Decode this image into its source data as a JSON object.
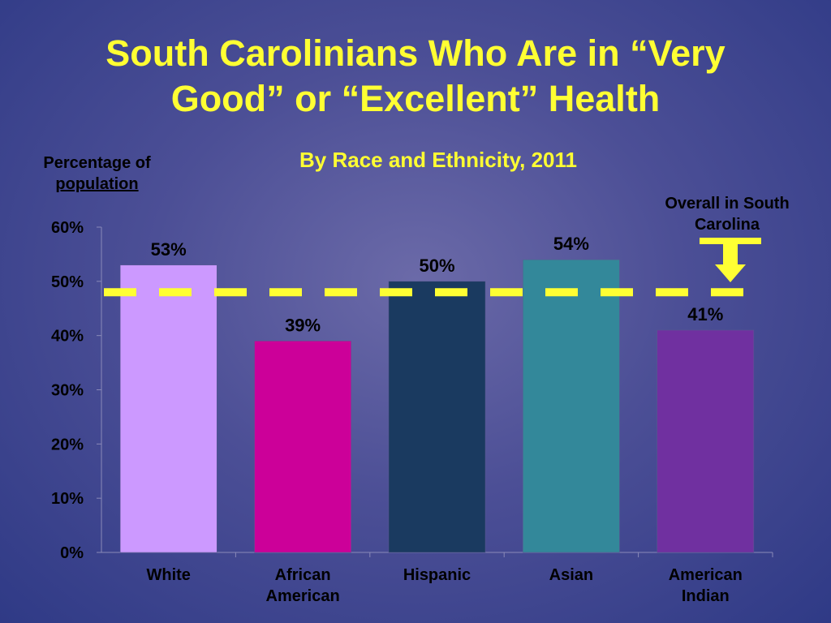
{
  "chart_data": {
    "type": "bar",
    "title_lines": [
      "South Carolinians Who Are in “Very",
      "Good” or “Excellent” Health"
    ],
    "subtitle": "By Race and Ethnicity, 2011",
    "ylabel_line1": "Percentage of",
    "ylabel_line2": "population",
    "categories": [
      "White",
      "African American",
      "Hispanic",
      "Asian",
      "American Indian"
    ],
    "category_lines": [
      [
        "White"
      ],
      [
        "African",
        "American"
      ],
      [
        "Hispanic"
      ],
      [
        "Asian"
      ],
      [
        "American",
        "Indian"
      ]
    ],
    "values": [
      53,
      39,
      50,
      54,
      41
    ],
    "value_labels": [
      "53%",
      "39%",
      "50%",
      "54%",
      "41%"
    ],
    "bar_colors": [
      "#cc99ff",
      "#cc0099",
      "#1a3a60",
      "#33889a",
      "#7030a0"
    ],
    "ylim": [
      0,
      60
    ],
    "yticks": [
      0,
      10,
      20,
      30,
      40,
      50,
      60
    ],
    "ytick_labels": [
      "0%",
      "10%",
      "20%",
      "30%",
      "40%",
      "50%",
      "60%"
    ],
    "reference_line": {
      "value": 48,
      "label": "Overall in South Carolina",
      "color": "#ffff33"
    },
    "grid": false,
    "legend": "none"
  }
}
